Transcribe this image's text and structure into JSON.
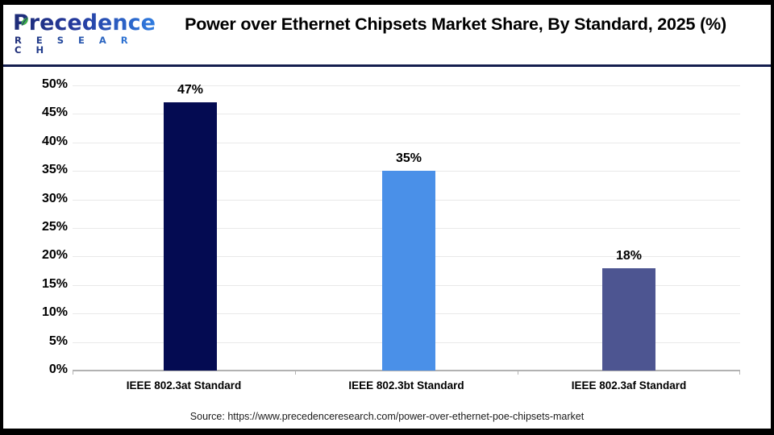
{
  "brand": {
    "name": "Precedence",
    "subname": "R E S E A R C H",
    "colors": {
      "navy": "#1d2b76",
      "blue": "#2f7ce0",
      "leaf_green": "#3fae49"
    }
  },
  "header": {
    "title": "Power over Ethernet Chipsets Market Share, By Standard, 2025 (%)"
  },
  "chart_data": {
    "type": "bar",
    "title": "Power over Ethernet Chipsets Market Share, By Standard, 2025 (%)",
    "categories": [
      "IEEE 802.3at Standard",
      "IEEE 802.3bt Standard",
      "IEEE 802.3af Standard"
    ],
    "values": [
      47,
      35,
      18
    ],
    "value_labels": [
      "47%",
      "35%",
      "18%"
    ],
    "bar_colors": [
      "#040b52",
      "#4a90e8",
      "#4d5591"
    ],
    "xlabel": "",
    "ylabel": "",
    "ylim": [
      0,
      50
    ],
    "ytick_step": 5,
    "ytick_labels": [
      "0%",
      "5%",
      "10%",
      "15%",
      "20%",
      "25%",
      "30%",
      "35%",
      "40%",
      "45%",
      "50%"
    ],
    "grid": true,
    "gridline_color": "#e9e9e9",
    "axis_color": "#b2b2b2",
    "legend": null
  },
  "footer": {
    "source": "Source: https://www.precedenceresearch.com/power-over-ethernet-poe-chipsets-market"
  }
}
